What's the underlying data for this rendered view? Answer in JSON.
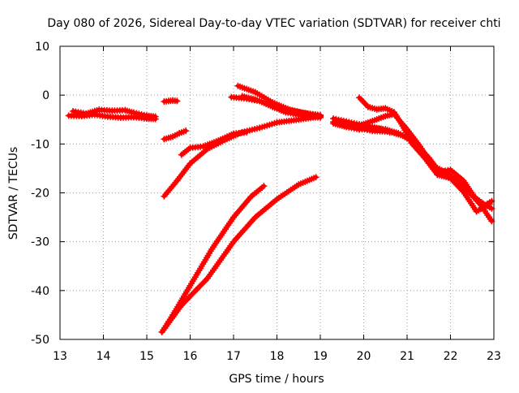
{
  "chart_data": {
    "type": "scatter",
    "title": "Day 080 of 2026, Sidereal Day-to-day VTEC variation (SDTVAR) for receiver chti",
    "xlabel": "GPS time / hours",
    "ylabel": "SDTVAR / TECUs",
    "xlim": [
      13,
      23
    ],
    "ylim": [
      -50,
      10
    ],
    "xticks": [
      "13",
      "14",
      "15",
      "16",
      "17",
      "18",
      "19",
      "20",
      "21",
      "22",
      "23"
    ],
    "yticks": [
      "10",
      "0",
      "-10",
      "-20",
      "-30",
      "-40",
      "-50"
    ],
    "grid": true,
    "marker": "+",
    "color": "#ff0000",
    "series": [
      {
        "name": "s1",
        "points": [
          [
            13.2,
            -4.2
          ],
          [
            13.5,
            -4.3
          ],
          [
            13.8,
            -4.0
          ],
          [
            14.1,
            -4.4
          ],
          [
            14.4,
            -4.6
          ],
          [
            14.7,
            -4.5
          ],
          [
            15.0,
            -4.8
          ],
          [
            15.2,
            -4.9
          ]
        ]
      },
      {
        "name": "s2",
        "points": [
          [
            13.3,
            -3.3
          ],
          [
            13.6,
            -3.8
          ],
          [
            13.9,
            -3.0
          ],
          [
            14.2,
            -3.2
          ],
          [
            14.5,
            -3.1
          ],
          [
            14.7,
            -3.6
          ],
          [
            15.0,
            -4.2
          ],
          [
            15.2,
            -4.4
          ]
        ]
      },
      {
        "name": "s3",
        "points": [
          [
            15.4,
            -1.3
          ],
          [
            15.5,
            -1.2
          ],
          [
            15.6,
            -1.1
          ],
          [
            15.7,
            -1.2
          ]
        ]
      },
      {
        "name": "s4",
        "points": [
          [
            15.4,
            -9.0
          ],
          [
            15.6,
            -8.5
          ],
          [
            15.75,
            -7.8
          ],
          [
            15.9,
            -7.3
          ]
        ]
      },
      {
        "name": "s5",
        "points": [
          [
            15.4,
            -20.7
          ],
          [
            15.7,
            -17.5
          ],
          [
            16.0,
            -14.0
          ],
          [
            16.4,
            -11.0
          ],
          [
            16.8,
            -9.2
          ],
          [
            17.2,
            -7.6
          ],
          [
            17.6,
            -6.7
          ],
          [
            18.0,
            -5.6
          ],
          [
            18.5,
            -5.0
          ],
          [
            19.0,
            -4.4
          ]
        ]
      },
      {
        "name": "s6",
        "points": [
          [
            15.8,
            -12.2
          ],
          [
            16.0,
            -10.8
          ],
          [
            16.3,
            -10.5
          ],
          [
            16.6,
            -9.5
          ],
          [
            17.0,
            -7.9
          ],
          [
            17.3,
            -7.6
          ]
        ]
      },
      {
        "name": "s7",
        "points": [
          [
            15.35,
            -48.5
          ],
          [
            15.6,
            -45.0
          ],
          [
            16.0,
            -39.0
          ],
          [
            16.5,
            -31.5
          ],
          [
            17.0,
            -25.0
          ],
          [
            17.4,
            -20.8
          ],
          [
            17.7,
            -18.6
          ]
        ]
      },
      {
        "name": "s8",
        "points": [
          [
            15.35,
            -48.5
          ],
          [
            15.8,
            -43.0
          ],
          [
            16.4,
            -37.5
          ],
          [
            17.0,
            -30.0
          ],
          [
            17.5,
            -25.0
          ],
          [
            18.0,
            -21.3
          ],
          [
            18.5,
            -18.3
          ],
          [
            18.9,
            -16.8
          ]
        ]
      },
      {
        "name": "s9",
        "points": [
          [
            17.1,
            1.9
          ],
          [
            17.5,
            0.6
          ],
          [
            17.9,
            -1.5
          ],
          [
            18.3,
            -3.0
          ],
          [
            18.7,
            -3.8
          ],
          [
            19.0,
            -4.1
          ]
        ]
      },
      {
        "name": "s10",
        "points": [
          [
            16.95,
            -0.4
          ],
          [
            17.3,
            -0.7
          ],
          [
            17.6,
            -1.2
          ],
          [
            17.9,
            -2.4
          ],
          [
            18.2,
            -3.5
          ],
          [
            18.6,
            -4.2
          ],
          [
            19.0,
            -4.6
          ]
        ]
      },
      {
        "name": "s11",
        "points": [
          [
            17.2,
            -0.2
          ],
          [
            17.5,
            -0.9
          ],
          [
            17.8,
            -1.8
          ],
          [
            18.1,
            -2.7
          ],
          [
            18.5,
            -3.5
          ],
          [
            19.0,
            -4.2
          ]
        ]
      },
      {
        "name": "s12",
        "points": [
          [
            19.3,
            -5.5
          ],
          [
            19.6,
            -6.0
          ],
          [
            19.9,
            -6.8
          ],
          [
            20.2,
            -7.3
          ],
          [
            20.6,
            -7.5
          ],
          [
            20.9,
            -8.3
          ],
          [
            21.2,
            -10.0
          ],
          [
            21.5,
            -12.8
          ],
          [
            21.8,
            -16.3
          ],
          [
            22.1,
            -17.2
          ],
          [
            22.4,
            -19.5
          ],
          [
            22.7,
            -22.5
          ],
          [
            22.95,
            -25.8
          ]
        ]
      },
      {
        "name": "s13",
        "points": [
          [
            19.3,
            -5.8
          ],
          [
            19.6,
            -6.5
          ],
          [
            19.9,
            -7.0
          ],
          [
            20.2,
            -6.8
          ],
          [
            20.5,
            -7.0
          ],
          [
            20.8,
            -7.8
          ],
          [
            21.1,
            -9.2
          ],
          [
            21.4,
            -12.0
          ],
          [
            21.7,
            -15.8
          ],
          [
            22.0,
            -15.3
          ],
          [
            22.3,
            -17.5
          ],
          [
            22.6,
            -21.5
          ],
          [
            22.95,
            -23.2
          ]
        ]
      },
      {
        "name": "s14",
        "points": [
          [
            19.9,
            -6.2
          ],
          [
            20.2,
            -5.3
          ],
          [
            20.5,
            -4.3
          ],
          [
            20.7,
            -3.9
          ],
          [
            21.0,
            -7.0
          ],
          [
            21.3,
            -10.5
          ],
          [
            21.6,
            -14.5
          ],
          [
            21.9,
            -15.8
          ],
          [
            22.2,
            -18.0
          ],
          [
            22.5,
            -20.5
          ],
          [
            22.8,
            -22.5
          ],
          [
            22.95,
            -21.7
          ]
        ]
      },
      {
        "name": "s15",
        "points": [
          [
            19.9,
            -0.5
          ],
          [
            20.1,
            -2.4
          ],
          [
            20.3,
            -2.9
          ],
          [
            20.5,
            -2.7
          ],
          [
            20.7,
            -3.5
          ],
          [
            20.9,
            -6.3
          ],
          [
            21.1,
            -9.8
          ],
          [
            21.4,
            -12.8
          ],
          [
            21.7,
            -16.3
          ],
          [
            22.0,
            -17.0
          ],
          [
            22.3,
            -19.8
          ],
          [
            22.6,
            -23.8
          ],
          [
            22.9,
            -22.3
          ]
        ]
      },
      {
        "name": "s16",
        "points": [
          [
            19.3,
            -4.8
          ],
          [
            19.6,
            -5.4
          ],
          [
            19.9,
            -6.0
          ],
          [
            20.2,
            -6.5
          ],
          [
            20.4,
            -6.9
          ],
          [
            20.6,
            -7.6
          ]
        ]
      }
    ]
  }
}
